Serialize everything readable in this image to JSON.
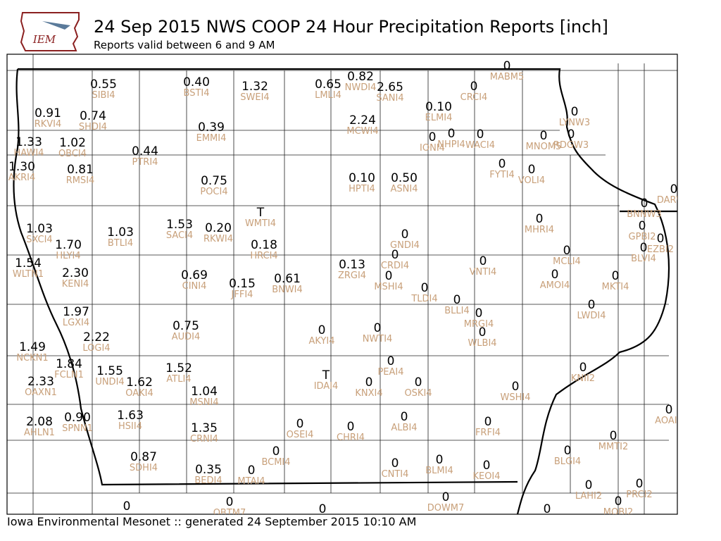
{
  "header": {
    "title": "24 Sep 2015 NWS COOP 24 Hour Precipitation Reports [inch]",
    "subtitle": "Reports valid between 6 and 9 AM"
  },
  "logo": "IEM",
  "footer": "Iowa Environmental Mesonet :: generated 24 September 2015 10:10 AM",
  "stations": [
    {
      "value": "0.55",
      "id": "SIBI4"
    },
    {
      "value": "0.40",
      "id": "BSTI4"
    },
    {
      "value": "1.32",
      "id": "SWEI4"
    },
    {
      "value": "0.65",
      "id": "LMLI4"
    },
    {
      "value": "0.82",
      "id": "NWDI4"
    },
    {
      "value": "2.65",
      "id": "SANI4"
    },
    {
      "value": "0",
      "id": "CRCI4"
    },
    {
      "value": "0",
      "id": "MABM5"
    },
    {
      "value": "0.91",
      "id": "RKVI4"
    },
    {
      "value": "0.74",
      "id": "SHDI4"
    },
    {
      "value": "0.39",
      "id": "EMMI4"
    },
    {
      "value": "2.24",
      "id": "MCWI4"
    },
    {
      "value": "0.10",
      "id": "ELMI4"
    },
    {
      "value": "0",
      "id": "LYNW3"
    },
    {
      "value": "1.33",
      "id": "HAWI4"
    },
    {
      "value": "1.02",
      "id": "OBCI4"
    },
    {
      "value": "0.44",
      "id": "PTRI4"
    },
    {
      "value": "0",
      "id": "IONI4"
    },
    {
      "value": "0",
      "id": "NHPI4"
    },
    {
      "value": "0",
      "id": "WACI4"
    },
    {
      "value": "0",
      "id": "MNOM5"
    },
    {
      "value": "0",
      "id": "RDGW3"
    },
    {
      "value": "1.30",
      "id": "AKRI4"
    },
    {
      "value": "0.81",
      "id": "RMSI4"
    },
    {
      "value": "0.75",
      "id": "POCI4"
    },
    {
      "value": "0.10",
      "id": "HPTI4"
    },
    {
      "value": "0.50",
      "id": "ASNI4"
    },
    {
      "value": "0",
      "id": "FYTI4"
    },
    {
      "value": "0",
      "id": "VOLI4"
    },
    {
      "value": "0",
      "id": "DARW3"
    },
    {
      "value": "T",
      "id": "WMTI4"
    },
    {
      "value": "0",
      "id": "BNNW3"
    },
    {
      "value": "1.03",
      "id": "SXCI4"
    },
    {
      "value": "1.53",
      "id": "SACI4"
    },
    {
      "value": "0.20",
      "id": "RKWI4"
    },
    {
      "value": "1.03",
      "id": "BTLI4"
    },
    {
      "value": "0",
      "id": "MHRI4"
    },
    {
      "value": "0",
      "id": "GPBI2"
    },
    {
      "value": "0",
      "id": "EZBI2"
    },
    {
      "value": "0",
      "id": "GNDI4"
    },
    {
      "value": "1.70",
      "id": "HLYI4"
    },
    {
      "value": "0.18",
      "id": "HRCI4"
    },
    {
      "value": "0",
      "id": "MCLI4"
    },
    {
      "value": "0",
      "id": "BLVI4"
    },
    {
      "value": "1.54",
      "id": "WLTN1"
    },
    {
      "value": "0.13",
      "id": "ZRGI4"
    },
    {
      "value": "0",
      "id": "CRDI4"
    },
    {
      "value": "0",
      "id": "VNTI4"
    },
    {
      "value": "2.30",
      "id": "KENI4"
    },
    {
      "value": "0.69",
      "id": "CINI4"
    },
    {
      "value": "0.15",
      "id": "JFFI4"
    },
    {
      "value": "0.61",
      "id": "BNWI4"
    },
    {
      "value": "0",
      "id": "MSHI4"
    },
    {
      "value": "0",
      "id": "AMOI4"
    },
    {
      "value": "0",
      "id": "MKTI4"
    },
    {
      "value": "0",
      "id": "TLDI4"
    },
    {
      "value": "0",
      "id": "BLLI4"
    },
    {
      "value": "0",
      "id": "LWDI4"
    },
    {
      "value": "1.97",
      "id": "LGXI4"
    },
    {
      "value": "0",
      "id": "MRGI4"
    },
    {
      "value": "0.75",
      "id": "AUDI4"
    },
    {
      "value": "0",
      "id": "AKYI4"
    },
    {
      "value": "0",
      "id": "NWTI4"
    },
    {
      "value": "0",
      "id": "WLBI4"
    },
    {
      "value": "2.22",
      "id": "LOGI4"
    },
    {
      "value": "1.49",
      "id": "NCKN1"
    },
    {
      "value": "1.84",
      "id": "FCLN1"
    },
    {
      "value": "0",
      "id": "PEAI4"
    },
    {
      "value": "1.52",
      "id": "ATLI4"
    },
    {
      "value": "1.55",
      "id": "UNDI4"
    },
    {
      "value": "1.62",
      "id": "OAKI4"
    },
    {
      "value": "T",
      "id": "IDAI4"
    },
    {
      "value": "0",
      "id": "KNXI4"
    },
    {
      "value": "0",
      "id": "OSKI4"
    },
    {
      "value": "0",
      "id": "KNII2"
    },
    {
      "value": "2.33",
      "id": "OAXN1"
    },
    {
      "value": "1.04",
      "id": "MSNI4"
    },
    {
      "value": "0",
      "id": "WSHI4"
    },
    {
      "value": "0",
      "id": "AOAI4"
    },
    {
      "value": "2.08",
      "id": "AHLN1"
    },
    {
      "value": "0.90",
      "id": "SPNN1"
    },
    {
      "value": "1.63",
      "id": "HSII4"
    },
    {
      "value": "0",
      "id": "ALBI4"
    },
    {
      "value": "0",
      "id": "OSEI4"
    },
    {
      "value": "0",
      "id": "CHRI4"
    },
    {
      "value": "0",
      "id": "FRFI4"
    },
    {
      "value": "1.35",
      "id": "CRNI4"
    },
    {
      "value": "0",
      "id": "MMTI2"
    },
    {
      "value": "0",
      "id": "BCMI4"
    },
    {
      "value": "0.87",
      "id": "SDHI4"
    },
    {
      "value": "0",
      "id": "BLGI4"
    },
    {
      "value": "0",
      "id": "CNTI4"
    },
    {
      "value": "0",
      "id": "BLMI4"
    },
    {
      "value": "0",
      "id": "KEOI4"
    },
    {
      "value": "0.35",
      "id": "BEDI4"
    },
    {
      "value": "0",
      "id": "MTAI4"
    },
    {
      "value": "0",
      "id": "LAHI2"
    },
    {
      "value": "0",
      "id": "PRCI2"
    },
    {
      "value": "0",
      "id": "MOBI2"
    },
    {
      "value": "0",
      "id": "DOWM7"
    },
    {
      "value": "0"
    },
    {
      "value": "0",
      "id": "OBTM7"
    },
    {
      "value": "0"
    },
    {
      "value": "0"
    }
  ]
}
